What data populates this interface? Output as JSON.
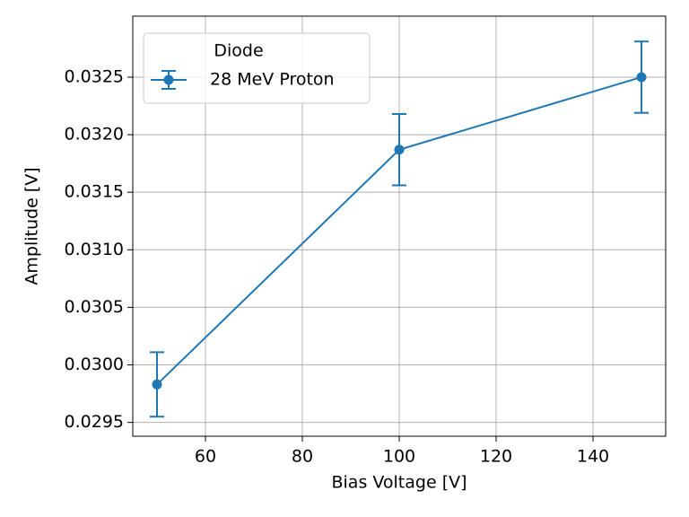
{
  "chart_data": {
    "type": "errorbar_line",
    "xlabel": "Bias Voltage [V]",
    "ylabel": "Amplitude [V]",
    "x": [
      50,
      100,
      150
    ],
    "series": [
      {
        "name": "28 MeV Proton",
        "color": "#1f77b4",
        "values": [
          0.02983,
          0.03187,
          0.0325
        ],
        "errors": [
          0.00028,
          0.00031,
          0.00031
        ]
      }
    ],
    "legend_title": "Diode",
    "legend": "upper left",
    "xlim": [
      45,
      155
    ],
    "xticks": [
      60,
      80,
      100,
      120,
      140
    ],
    "ylim": [
      0.02938,
      0.03303
    ],
    "yticks": [
      0.0295,
      {
        "value": 0.03,
        "label": "0.0300"
      },
      0.0305,
      {
        "value": 0.031,
        "label": "0.0310"
      },
      0.0315,
      {
        "value": 0.032,
        "label": "0.0320"
      },
      0.0325
    ],
    "grid": true
  }
}
